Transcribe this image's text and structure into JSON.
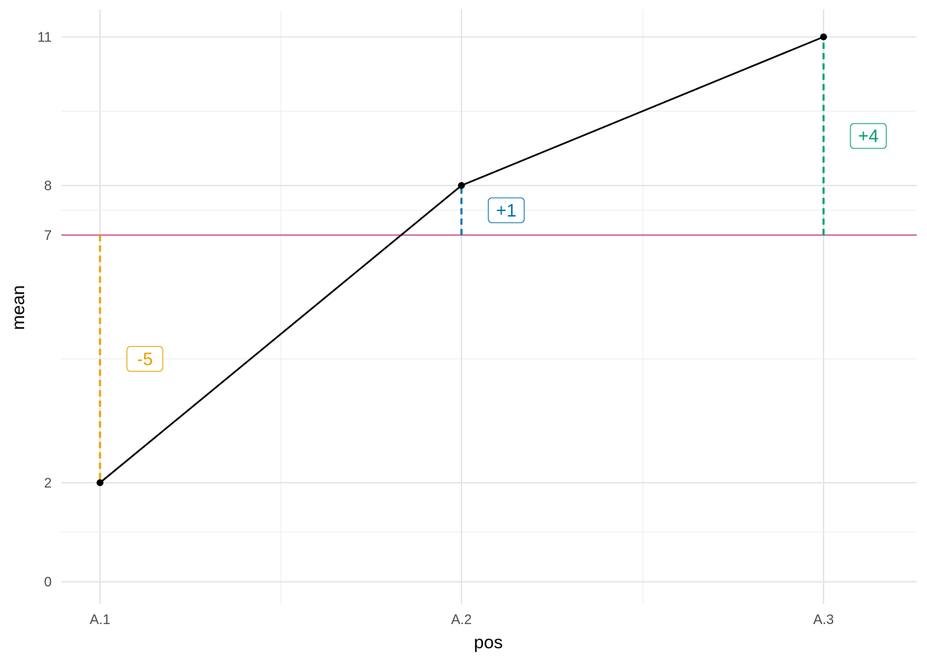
{
  "chart_data": {
    "type": "line",
    "xlabel": "pos",
    "ylabel": "mean",
    "categories": [
      "A.1",
      "A.2",
      "A.3"
    ],
    "series": [
      {
        "values": [
          2,
          8,
          11
        ],
        "color": "#000000"
      }
    ],
    "yticks": [
      0,
      2,
      7,
      8,
      11
    ],
    "ylim": [
      -0.45,
      11.55
    ],
    "grid": true,
    "reference_line": {
      "y": 7,
      "color": "#CC79A7"
    },
    "deviations": [
      {
        "category": "A.1",
        "from": 7,
        "to": 2,
        "label": "-5",
        "color": "#E69F00",
        "label_y": 4.5
      },
      {
        "category": "A.2",
        "from": 7,
        "to": 8,
        "label": "+1",
        "color": "#0072B2",
        "label_y": 7.5
      },
      {
        "category": "A.3",
        "from": 7,
        "to": 11,
        "label": "+4",
        "color": "#009E73",
        "label_y": 9.0
      }
    ]
  }
}
